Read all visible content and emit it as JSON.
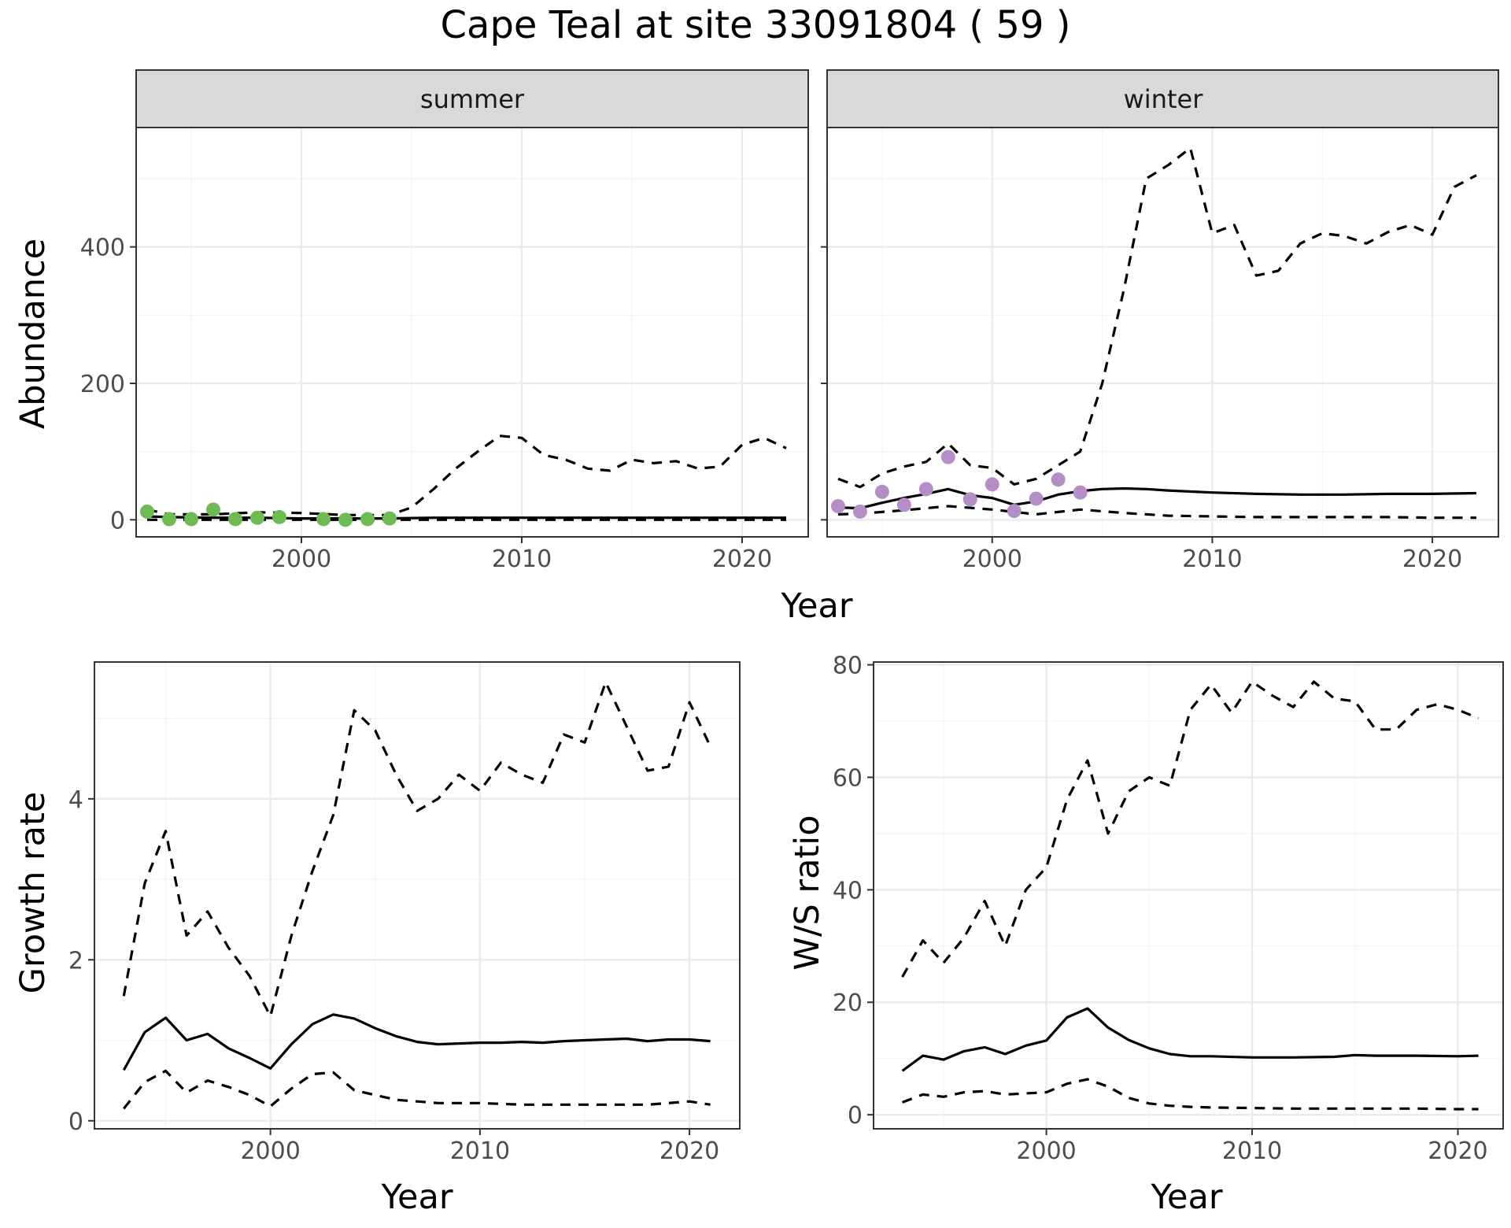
{
  "title": "Cape Teal at site 33091804 ( 59 )",
  "colors": {
    "summer_points": "#6dbb52",
    "winter_points": "#b48ec6",
    "line": "#000000",
    "grid_major": "#ebebeb",
    "grid_minor": "#f4f4f4",
    "strip_fill": "#d9d9d9",
    "border": "#333333"
  },
  "chart_data": [
    {
      "type": "line",
      "panel": "summer",
      "strip": "summer",
      "xlabel": "Year",
      "ylabel": "Abundance",
      "xlim": [
        1992.5,
        2023
      ],
      "ylim": [
        -25,
        575
      ],
      "xticks": [
        2000,
        2010,
        2020
      ],
      "yticks": [
        0,
        200,
        400
      ],
      "points": {
        "x": [
          1993,
          1994,
          1995,
          1996,
          1997,
          1998,
          1999,
          2001,
          2002,
          2003,
          2004
        ],
        "y": [
          12,
          1,
          1,
          15,
          1,
          3,
          4,
          1,
          0,
          1,
          2
        ]
      },
      "series": [
        {
          "style": "solid",
          "x": [
            1993,
            1994,
            1996,
            1998,
            2000,
            2002,
            2004,
            2006,
            2008,
            2010,
            2012,
            2014,
            2016,
            2018,
            2020,
            2022
          ],
          "y": [
            5,
            4,
            3,
            3,
            2,
            2,
            2,
            3,
            3,
            3,
            3,
            3,
            3,
            3,
            3,
            3
          ]
        },
        {
          "style": "dashed",
          "x": [
            1993,
            1994,
            1996,
            1998,
            2000,
            2002,
            2004,
            2005,
            2006,
            2007,
            2008,
            2009,
            2010,
            2011,
            2012,
            2013,
            2014,
            2015,
            2016,
            2017,
            2018,
            2019,
            2020,
            2021,
            2022
          ],
          "y": [
            15,
            8,
            8,
            11,
            10,
            7,
            7,
            18,
            45,
            75,
            100,
            123,
            120,
            95,
            88,
            75,
            72,
            88,
            83,
            86,
            75,
            78,
            110,
            120,
            105
          ]
        },
        {
          "style": "dashed",
          "x": [
            1993,
            1994,
            1996,
            1998,
            2000,
            2002,
            2004,
            2006,
            2008,
            2010,
            2012,
            2014,
            2016,
            2018,
            2020,
            2022
          ],
          "y": [
            0,
            0,
            0,
            0,
            0,
            0,
            0,
            0,
            0,
            0,
            0,
            0,
            0,
            0,
            0,
            0
          ]
        }
      ]
    },
    {
      "type": "line",
      "panel": "winter",
      "strip": "winter",
      "xlabel": "Year",
      "ylabel": "Abundance",
      "xlim": [
        1992.5,
        2023
      ],
      "ylim": [
        -25,
        575
      ],
      "xticks": [
        2000,
        2010,
        2020
      ],
      "yticks": [
        0,
        200,
        400
      ],
      "points": {
        "x": [
          1993,
          1994,
          1995,
          1996,
          1997,
          1998,
          1999,
          2000,
          2001,
          2002,
          2003,
          2004
        ],
        "y": [
          20,
          12,
          41,
          22,
          45,
          92,
          30,
          52,
          13,
          31,
          59,
          40
        ]
      },
      "series": [
        {
          "style": "solid",
          "x": [
            1993,
            1994,
            1995,
            1996,
            1997,
            1998,
            1999,
            2000,
            2001,
            2002,
            2003,
            2004,
            2005,
            2006,
            2007,
            2008,
            2010,
            2012,
            2014,
            2016,
            2018,
            2020,
            2022
          ],
          "y": [
            18,
            17,
            25,
            32,
            38,
            45,
            36,
            32,
            22,
            27,
            37,
            42,
            45,
            46,
            45,
            43,
            40,
            38,
            37,
            37,
            38,
            38,
            39
          ]
        },
        {
          "style": "dashed",
          "x": [
            1993,
            1994,
            1995,
            1996,
            1997,
            1998,
            1999,
            2000,
            2001,
            2002,
            2003,
            2004,
            2005,
            2006,
            2007,
            2008,
            2009,
            2010,
            2011,
            2012,
            2013,
            2014,
            2015,
            2016,
            2017,
            2018,
            2019,
            2020,
            2021,
            2022
          ],
          "y": [
            60,
            48,
            68,
            78,
            85,
            112,
            80,
            76,
            52,
            60,
            80,
            100,
            200,
            340,
            500,
            520,
            545,
            420,
            432,
            358,
            365,
            405,
            420,
            416,
            405,
            422,
            432,
            418,
            488,
            505
          ]
        },
        {
          "style": "dashed",
          "x": [
            1993,
            1994,
            1996,
            1998,
            2000,
            2002,
            2004,
            2006,
            2008,
            2010,
            2012,
            2014,
            2016,
            2018,
            2020,
            2022
          ],
          "y": [
            8,
            9,
            14,
            20,
            15,
            8,
            15,
            10,
            6,
            5,
            4,
            4,
            4,
            4,
            3,
            3
          ]
        }
      ]
    },
    {
      "type": "line",
      "panel": "growth",
      "xlabel": "Year",
      "ylabel": "Growth rate",
      "xlim": [
        1991.6,
        2022.4
      ],
      "ylim": [
        -0.1,
        5.7
      ],
      "xticks": [
        2000,
        2010,
        2020
      ],
      "yticks": [
        0,
        2,
        4
      ],
      "series": [
        {
          "style": "solid",
          "x": [
            1993,
            1994,
            1995,
            1996,
            1997,
            1998,
            1999,
            2000,
            2001,
            2002,
            2003,
            2004,
            2005,
            2006,
            2007,
            2008,
            2009,
            2010,
            2011,
            2012,
            2013,
            2014,
            2015,
            2016,
            2017,
            2018,
            2019,
            2020,
            2021
          ],
          "y": [
            0.63,
            1.1,
            1.28,
            1.0,
            1.08,
            0.9,
            0.78,
            0.65,
            0.95,
            1.2,
            1.32,
            1.27,
            1.15,
            1.05,
            0.98,
            0.95,
            0.96,
            0.97,
            0.97,
            0.98,
            0.97,
            0.99,
            1.0,
            1.01,
            1.02,
            0.99,
            1.01,
            1.01,
            0.99
          ]
        },
        {
          "style": "dashed",
          "x": [
            1993,
            1994,
            1995,
            1996,
            1997,
            1998,
            1999,
            2000,
            2001,
            2002,
            2003,
            2004,
            2005,
            2006,
            2007,
            2008,
            2009,
            2010,
            2011,
            2012,
            2013,
            2014,
            2015,
            2016,
            2017,
            2018,
            2019,
            2020,
            2021
          ],
          "y": [
            1.55,
            2.95,
            3.6,
            2.3,
            2.6,
            2.15,
            1.8,
            1.3,
            2.3,
            3.1,
            3.8,
            5.1,
            4.85,
            4.3,
            3.85,
            4.0,
            4.3,
            4.1,
            4.45,
            4.3,
            4.2,
            4.8,
            4.7,
            5.45,
            4.9,
            4.35,
            4.4,
            5.2,
            4.65
          ]
        },
        {
          "style": "dashed",
          "x": [
            1993,
            1994,
            1995,
            1996,
            1997,
            1998,
            1999,
            2000,
            2001,
            2002,
            2003,
            2004,
            2005,
            2006,
            2007,
            2008,
            2010,
            2012,
            2014,
            2016,
            2018,
            2020,
            2021
          ],
          "y": [
            0.15,
            0.48,
            0.62,
            0.35,
            0.5,
            0.42,
            0.32,
            0.18,
            0.4,
            0.58,
            0.6,
            0.38,
            0.32,
            0.26,
            0.24,
            0.22,
            0.22,
            0.2,
            0.2,
            0.2,
            0.2,
            0.24,
            0.2
          ]
        }
      ]
    },
    {
      "type": "line",
      "panel": "ratio",
      "xlabel": "Year",
      "ylabel": "W/S ratio",
      "xlim": [
        1991.6,
        2022.2
      ],
      "ylim": [
        -2.5,
        80.5
      ],
      "xticks": [
        2000,
        2010,
        2020
      ],
      "yticks": [
        0,
        20,
        40,
        60,
        80
      ],
      "series": [
        {
          "style": "solid",
          "x": [
            1993,
            1994,
            1995,
            1996,
            1997,
            1998,
            1999,
            2000,
            2001,
            2002,
            2003,
            2004,
            2005,
            2006,
            2007,
            2008,
            2010,
            2012,
            2014,
            2015,
            2016,
            2018,
            2020,
            2021
          ],
          "y": [
            7.8,
            10.5,
            9.8,
            11.3,
            12.0,
            10.8,
            12.3,
            13.2,
            17.3,
            18.9,
            15.5,
            13.3,
            11.8,
            10.8,
            10.4,
            10.4,
            10.2,
            10.2,
            10.3,
            10.6,
            10.5,
            10.5,
            10.4,
            10.5
          ]
        },
        {
          "style": "dashed",
          "x": [
            1993,
            1994,
            1995,
            1996,
            1997,
            1998,
            1999,
            2000,
            2001,
            2002,
            2003,
            2004,
            2005,
            2006,
            2007,
            2008,
            2009,
            2010,
            2011,
            2012,
            2013,
            2014,
            2015,
            2016,
            2017,
            2018,
            2019,
            2020,
            2021
          ],
          "y": [
            24.5,
            31.0,
            27.0,
            31.5,
            38.0,
            30.0,
            40.0,
            44.0,
            56.0,
            63.0,
            50.0,
            57.5,
            60.0,
            58.5,
            72.0,
            76.5,
            71.5,
            77.0,
            74.5,
            72.5,
            77.0,
            74.0,
            73.5,
            68.5,
            68.5,
            72.0,
            73.0,
            72.0,
            70.5
          ]
        },
        {
          "style": "dashed",
          "x": [
            1993,
            1994,
            1995,
            1996,
            1997,
            1998,
            1999,
            2000,
            2001,
            2002,
            2003,
            2004,
            2005,
            2006,
            2007,
            2008,
            2010,
            2012,
            2014,
            2016,
            2018,
            2020,
            2021
          ],
          "y": [
            2.2,
            3.6,
            3.2,
            4.0,
            4.2,
            3.6,
            3.8,
            4.0,
            5.5,
            6.3,
            5.0,
            3.0,
            2.0,
            1.6,
            1.4,
            1.3,
            1.2,
            1.1,
            1.1,
            1.1,
            1.1,
            1.0,
            1.0
          ]
        }
      ]
    }
  ]
}
